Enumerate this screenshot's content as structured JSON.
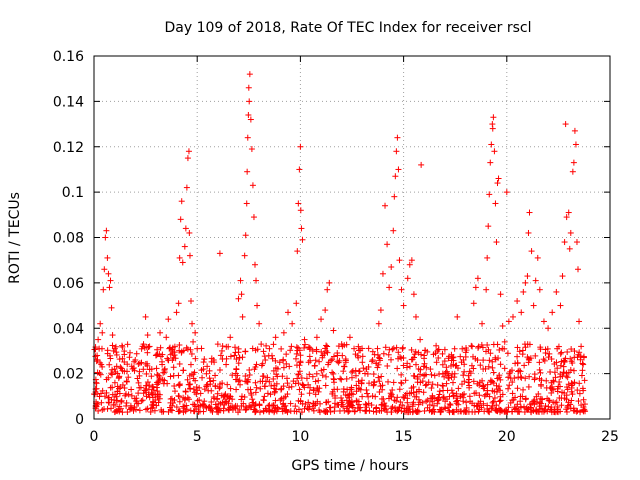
{
  "chart_data": {
    "type": "scatter",
    "title": "Day 109 of 2018, Rate Of TEC Index for receiver rscl",
    "xlabel": "GPS time / hours",
    "ylabel": "ROTI / TECUs",
    "xlim": [
      0,
      25
    ],
    "ylim": [
      0,
      0.16
    ],
    "x_ticks": [
      0,
      5,
      10,
      15,
      20,
      25
    ],
    "x_tick_labels": [
      "0",
      "5",
      "10",
      "15",
      "20",
      "25"
    ],
    "y_ticks": [
      0,
      0.02,
      0.04,
      0.06,
      0.08,
      0.1,
      0.12,
      0.14,
      0.16
    ],
    "y_tick_labels": [
      "0",
      "0.02",
      "0.04",
      "0.06",
      "0.08",
      "0.1",
      "0.12",
      "0.14",
      "0.16"
    ],
    "grid": true,
    "marker": "+",
    "marker_color": "#ff0000",
    "series": [
      {
        "name": "ROTI",
        "points": [
          [
            0.0,
            0.011
          ],
          [
            0.1,
            0.016
          ],
          [
            0.15,
            0.028
          ],
          [
            0.2,
            0.035
          ],
          [
            0.25,
            0.031
          ],
          [
            0.3,
            0.042
          ],
          [
            0.35,
            0.024
          ],
          [
            0.4,
            0.038
          ],
          [
            0.45,
            0.057
          ],
          [
            0.5,
            0.066
          ],
          [
            0.55,
            0.08
          ],
          [
            0.6,
            0.083
          ],
          [
            0.65,
            0.071
          ],
          [
            0.7,
            0.064
          ],
          [
            0.75,
            0.058
          ],
          [
            0.8,
            0.061
          ],
          [
            0.85,
            0.049
          ],
          [
            0.9,
            0.037
          ],
          [
            0.95,
            0.03
          ],
          [
            1.0,
            0.022
          ],
          [
            1.2,
            0.018
          ],
          [
            1.4,
            0.015
          ],
          [
            1.6,
            0.021
          ],
          [
            1.8,
            0.013
          ],
          [
            2.0,
            0.026
          ],
          [
            2.2,
            0.019
          ],
          [
            2.4,
            0.033
          ],
          [
            2.5,
            0.045
          ],
          [
            2.6,
            0.037
          ],
          [
            2.8,
            0.022
          ],
          [
            3.0,
            0.028
          ],
          [
            3.2,
            0.038
          ],
          [
            3.3,
            0.024
          ],
          [
            3.5,
            0.036
          ],
          [
            3.6,
            0.044
          ],
          [
            3.8,
            0.029
          ],
          [
            4.0,
            0.047
          ],
          [
            4.1,
            0.051
          ],
          [
            4.15,
            0.071
          ],
          [
            4.2,
            0.088
          ],
          [
            4.25,
            0.096
          ],
          [
            4.3,
            0.069
          ],
          [
            4.4,
            0.076
          ],
          [
            4.45,
            0.084
          ],
          [
            4.5,
            0.102
          ],
          [
            4.55,
            0.115
          ],
          [
            4.6,
            0.118
          ],
          [
            4.62,
            0.082
          ],
          [
            4.65,
            0.072
          ],
          [
            4.7,
            0.052
          ],
          [
            4.75,
            0.042
          ],
          [
            4.8,
            0.034
          ],
          [
            4.9,
            0.038
          ],
          [
            5.0,
            0.031
          ],
          [
            5.3,
            0.022
          ],
          [
            5.6,
            0.018
          ],
          [
            5.8,
            0.026
          ],
          [
            6.0,
            0.033
          ],
          [
            6.1,
            0.073
          ],
          [
            6.2,
            0.03
          ],
          [
            6.4,
            0.024
          ],
          [
            6.6,
            0.036
          ],
          [
            6.8,
            0.028
          ],
          [
            7.0,
            0.053
          ],
          [
            7.1,
            0.061
          ],
          [
            7.15,
            0.055
          ],
          [
            7.2,
            0.045
          ],
          [
            7.3,
            0.072
          ],
          [
            7.35,
            0.081
          ],
          [
            7.4,
            0.095
          ],
          [
            7.42,
            0.109
          ],
          [
            7.45,
            0.124
          ],
          [
            7.48,
            0.134
          ],
          [
            7.5,
            0.146
          ],
          [
            7.52,
            0.14
          ],
          [
            7.55,
            0.152
          ],
          [
            7.6,
            0.132
          ],
          [
            7.65,
            0.119
          ],
          [
            7.7,
            0.103
          ],
          [
            7.75,
            0.089
          ],
          [
            7.8,
            0.068
          ],
          [
            7.85,
            0.061
          ],
          [
            7.9,
            0.05
          ],
          [
            8.0,
            0.042
          ],
          [
            8.1,
            0.033
          ],
          [
            8.3,
            0.026
          ],
          [
            8.5,
            0.031
          ],
          [
            8.8,
            0.036
          ],
          [
            9.0,
            0.025
          ],
          [
            9.2,
            0.038
          ],
          [
            9.4,
            0.047
          ],
          [
            9.6,
            0.042
          ],
          [
            9.8,
            0.051
          ],
          [
            9.85,
            0.074
          ],
          [
            9.9,
            0.095
          ],
          [
            9.95,
            0.11
          ],
          [
            10.0,
            0.12
          ],
          [
            10.02,
            0.092
          ],
          [
            10.05,
            0.084
          ],
          [
            10.1,
            0.079
          ],
          [
            10.2,
            0.035
          ],
          [
            10.4,
            0.025
          ],
          [
            10.6,
            0.03
          ],
          [
            10.8,
            0.036
          ],
          [
            11.0,
            0.044
          ],
          [
            11.2,
            0.048
          ],
          [
            11.3,
            0.057
          ],
          [
            11.4,
            0.06
          ],
          [
            11.6,
            0.039
          ],
          [
            11.8,
            0.028
          ],
          [
            12.0,
            0.033
          ],
          [
            12.2,
            0.025
          ],
          [
            12.4,
            0.036
          ],
          [
            12.6,
            0.031
          ],
          [
            12.8,
            0.027
          ],
          [
            13.0,
            0.025
          ],
          [
            13.2,
            0.022
          ],
          [
            13.5,
            0.026
          ],
          [
            13.8,
            0.042
          ],
          [
            13.9,
            0.048
          ],
          [
            14.0,
            0.064
          ],
          [
            14.1,
            0.094
          ],
          [
            14.2,
            0.077
          ],
          [
            14.3,
            0.058
          ],
          [
            14.4,
            0.067
          ],
          [
            14.5,
            0.083
          ],
          [
            14.55,
            0.098
          ],
          [
            14.6,
            0.107
          ],
          [
            14.65,
            0.118
          ],
          [
            14.7,
            0.124
          ],
          [
            14.75,
            0.11
          ],
          [
            14.8,
            0.07
          ],
          [
            14.9,
            0.057
          ],
          [
            15.0,
            0.05
          ],
          [
            15.2,
            0.062
          ],
          [
            15.3,
            0.068
          ],
          [
            15.4,
            0.07
          ],
          [
            15.5,
            0.055
          ],
          [
            15.6,
            0.045
          ],
          [
            15.8,
            0.035
          ],
          [
            15.85,
            0.112
          ],
          [
            16.0,
            0.028
          ],
          [
            16.3,
            0.022
          ],
          [
            16.6,
            0.025
          ],
          [
            16.9,
            0.02
          ],
          [
            17.2,
            0.018
          ],
          [
            17.6,
            0.045
          ],
          [
            17.9,
            0.026
          ],
          [
            18.2,
            0.021
          ],
          [
            18.4,
            0.051
          ],
          [
            18.5,
            0.058
          ],
          [
            18.6,
            0.062
          ],
          [
            18.8,
            0.042
          ],
          [
            19.0,
            0.057
          ],
          [
            19.05,
            0.071
          ],
          [
            19.1,
            0.085
          ],
          [
            19.15,
            0.099
          ],
          [
            19.2,
            0.113
          ],
          [
            19.25,
            0.121
          ],
          [
            19.3,
            0.13
          ],
          [
            19.32,
            0.128
          ],
          [
            19.35,
            0.133
          ],
          [
            19.4,
            0.118
          ],
          [
            19.45,
            0.095
          ],
          [
            19.5,
            0.078
          ],
          [
            19.55,
            0.104
          ],
          [
            19.6,
            0.106
          ],
          [
            19.7,
            0.055
          ],
          [
            19.8,
            0.041
          ],
          [
            19.9,
            0.034
          ],
          [
            20.0,
            0.1
          ],
          [
            20.1,
            0.043
          ],
          [
            20.3,
            0.045
          ],
          [
            20.5,
            0.052
          ],
          [
            20.7,
            0.047
          ],
          [
            20.8,
            0.056
          ],
          [
            20.9,
            0.06
          ],
          [
            21.0,
            0.063
          ],
          [
            21.05,
            0.082
          ],
          [
            21.1,
            0.091
          ],
          [
            21.2,
            0.074
          ],
          [
            21.3,
            0.05
          ],
          [
            21.4,
            0.061
          ],
          [
            21.5,
            0.071
          ],
          [
            21.6,
            0.057
          ],
          [
            21.8,
            0.043
          ],
          [
            22.0,
            0.04
          ],
          [
            22.2,
            0.047
          ],
          [
            22.4,
            0.056
          ],
          [
            22.6,
            0.05
          ],
          [
            22.7,
            0.063
          ],
          [
            22.8,
            0.078
          ],
          [
            22.85,
            0.13
          ],
          [
            22.9,
            0.089
          ],
          [
            23.0,
            0.091
          ],
          [
            23.05,
            0.075
          ],
          [
            23.1,
            0.082
          ],
          [
            23.2,
            0.109
          ],
          [
            23.25,
            0.113
          ],
          [
            23.3,
            0.127
          ],
          [
            23.35,
            0.121
          ],
          [
            23.4,
            0.078
          ],
          [
            23.45,
            0.066
          ],
          [
            23.5,
            0.043
          ],
          [
            23.6,
            0.032
          ],
          [
            23.7,
            0.024
          ]
        ]
      }
    ]
  }
}
